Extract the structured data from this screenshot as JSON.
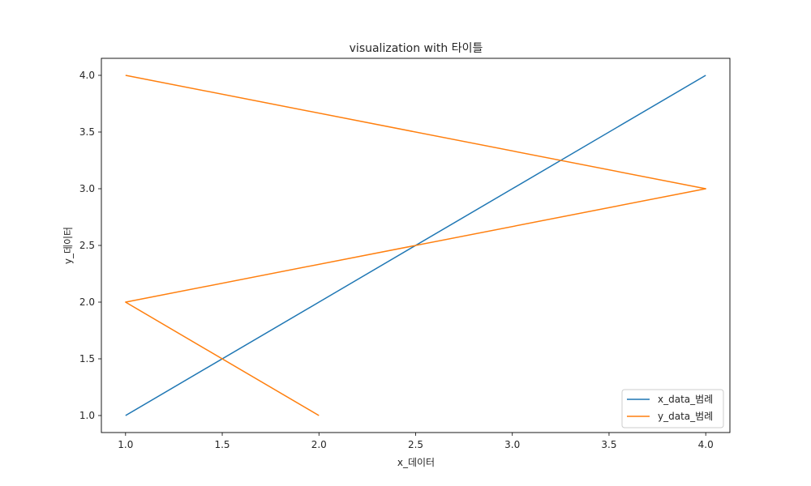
{
  "chart_data": {
    "type": "line",
    "title": "visualization with 타이틀",
    "xlabel": "x_데이터",
    "ylabel": "y_데이터",
    "xlim": [
      0.875,
      4.125
    ],
    "ylim": [
      0.85,
      4.15
    ],
    "xticks": [
      1.0,
      1.5,
      2.0,
      2.5,
      3.0,
      3.5,
      4.0
    ],
    "xtick_labels": [
      "1.0",
      "1.5",
      "2.0",
      "2.5",
      "3.0",
      "3.5",
      "4.0"
    ],
    "yticks": [
      1.0,
      1.5,
      2.0,
      2.5,
      3.0,
      3.5,
      4.0
    ],
    "ytick_labels": [
      "1.0",
      "1.5",
      "2.0",
      "2.5",
      "3.0",
      "3.5",
      "4.0"
    ],
    "grid": false,
    "legend_position": "bottom-right",
    "series": [
      {
        "name": "x_data_범례",
        "color": "#1f77b4",
        "points": [
          [
            1,
            1
          ],
          [
            2,
            2
          ],
          [
            3,
            3
          ],
          [
            4,
            4
          ]
        ]
      },
      {
        "name": "y_data_범례",
        "color": "#ff7f0e",
        "points": [
          [
            1,
            4
          ],
          [
            4,
            3
          ],
          [
            1,
            2
          ],
          [
            2,
            1
          ]
        ]
      }
    ]
  }
}
